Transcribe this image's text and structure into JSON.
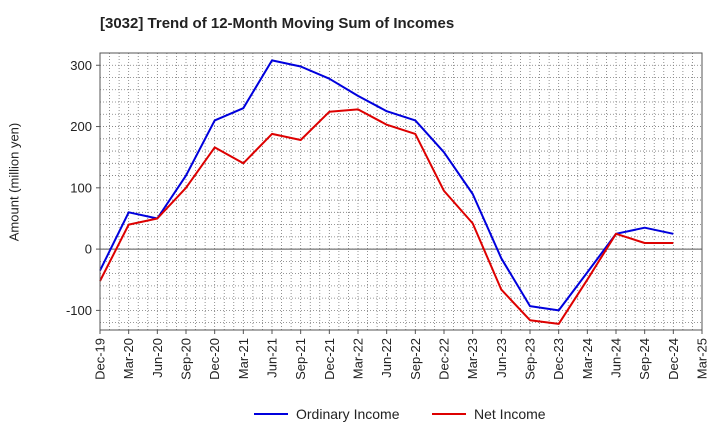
{
  "chart_data": {
    "type": "line",
    "title": "[3032]  Trend of 12-Month Moving Sum of Incomes",
    "ylabel": "Amount (million yen)",
    "xlabel": "",
    "x": [
      "Dec-19",
      "Mar-20",
      "Jun-20",
      "Sep-20",
      "Dec-20",
      "Mar-21",
      "Jun-21",
      "Sep-21",
      "Dec-21",
      "Mar-22",
      "Jun-22",
      "Sep-22",
      "Dec-22",
      "Mar-23",
      "Jun-23",
      "Sep-23",
      "Dec-23",
      "Mar-24",
      "Jun-24",
      "Sep-24",
      "Dec-24",
      "Mar-25"
    ],
    "ylim": [
      -132,
      320
    ],
    "yticks": [
      300,
      200,
      100,
      0,
      -100
    ],
    "ytick_labels": [
      "300",
      "200",
      "100",
      "0",
      "-100"
    ],
    "grid": true,
    "legend_position": "bottom-center",
    "series": [
      {
        "name": "Ordinary Income",
        "color": "#0000dd",
        "values": [
          -35,
          60,
          50,
          120,
          210,
          230,
          308,
          298,
          278,
          250,
          225,
          210,
          158,
          90,
          -15,
          -93,
          -100,
          -38,
          25,
          35,
          25,
          null
        ]
      },
      {
        "name": "Net Income",
        "color": "#dd0000",
        "values": [
          -52,
          40,
          50,
          100,
          166,
          140,
          188,
          178,
          224,
          228,
          203,
          188,
          95,
          42,
          -66,
          -116,
          -122,
          -50,
          25,
          10,
          10,
          null
        ]
      }
    ]
  }
}
